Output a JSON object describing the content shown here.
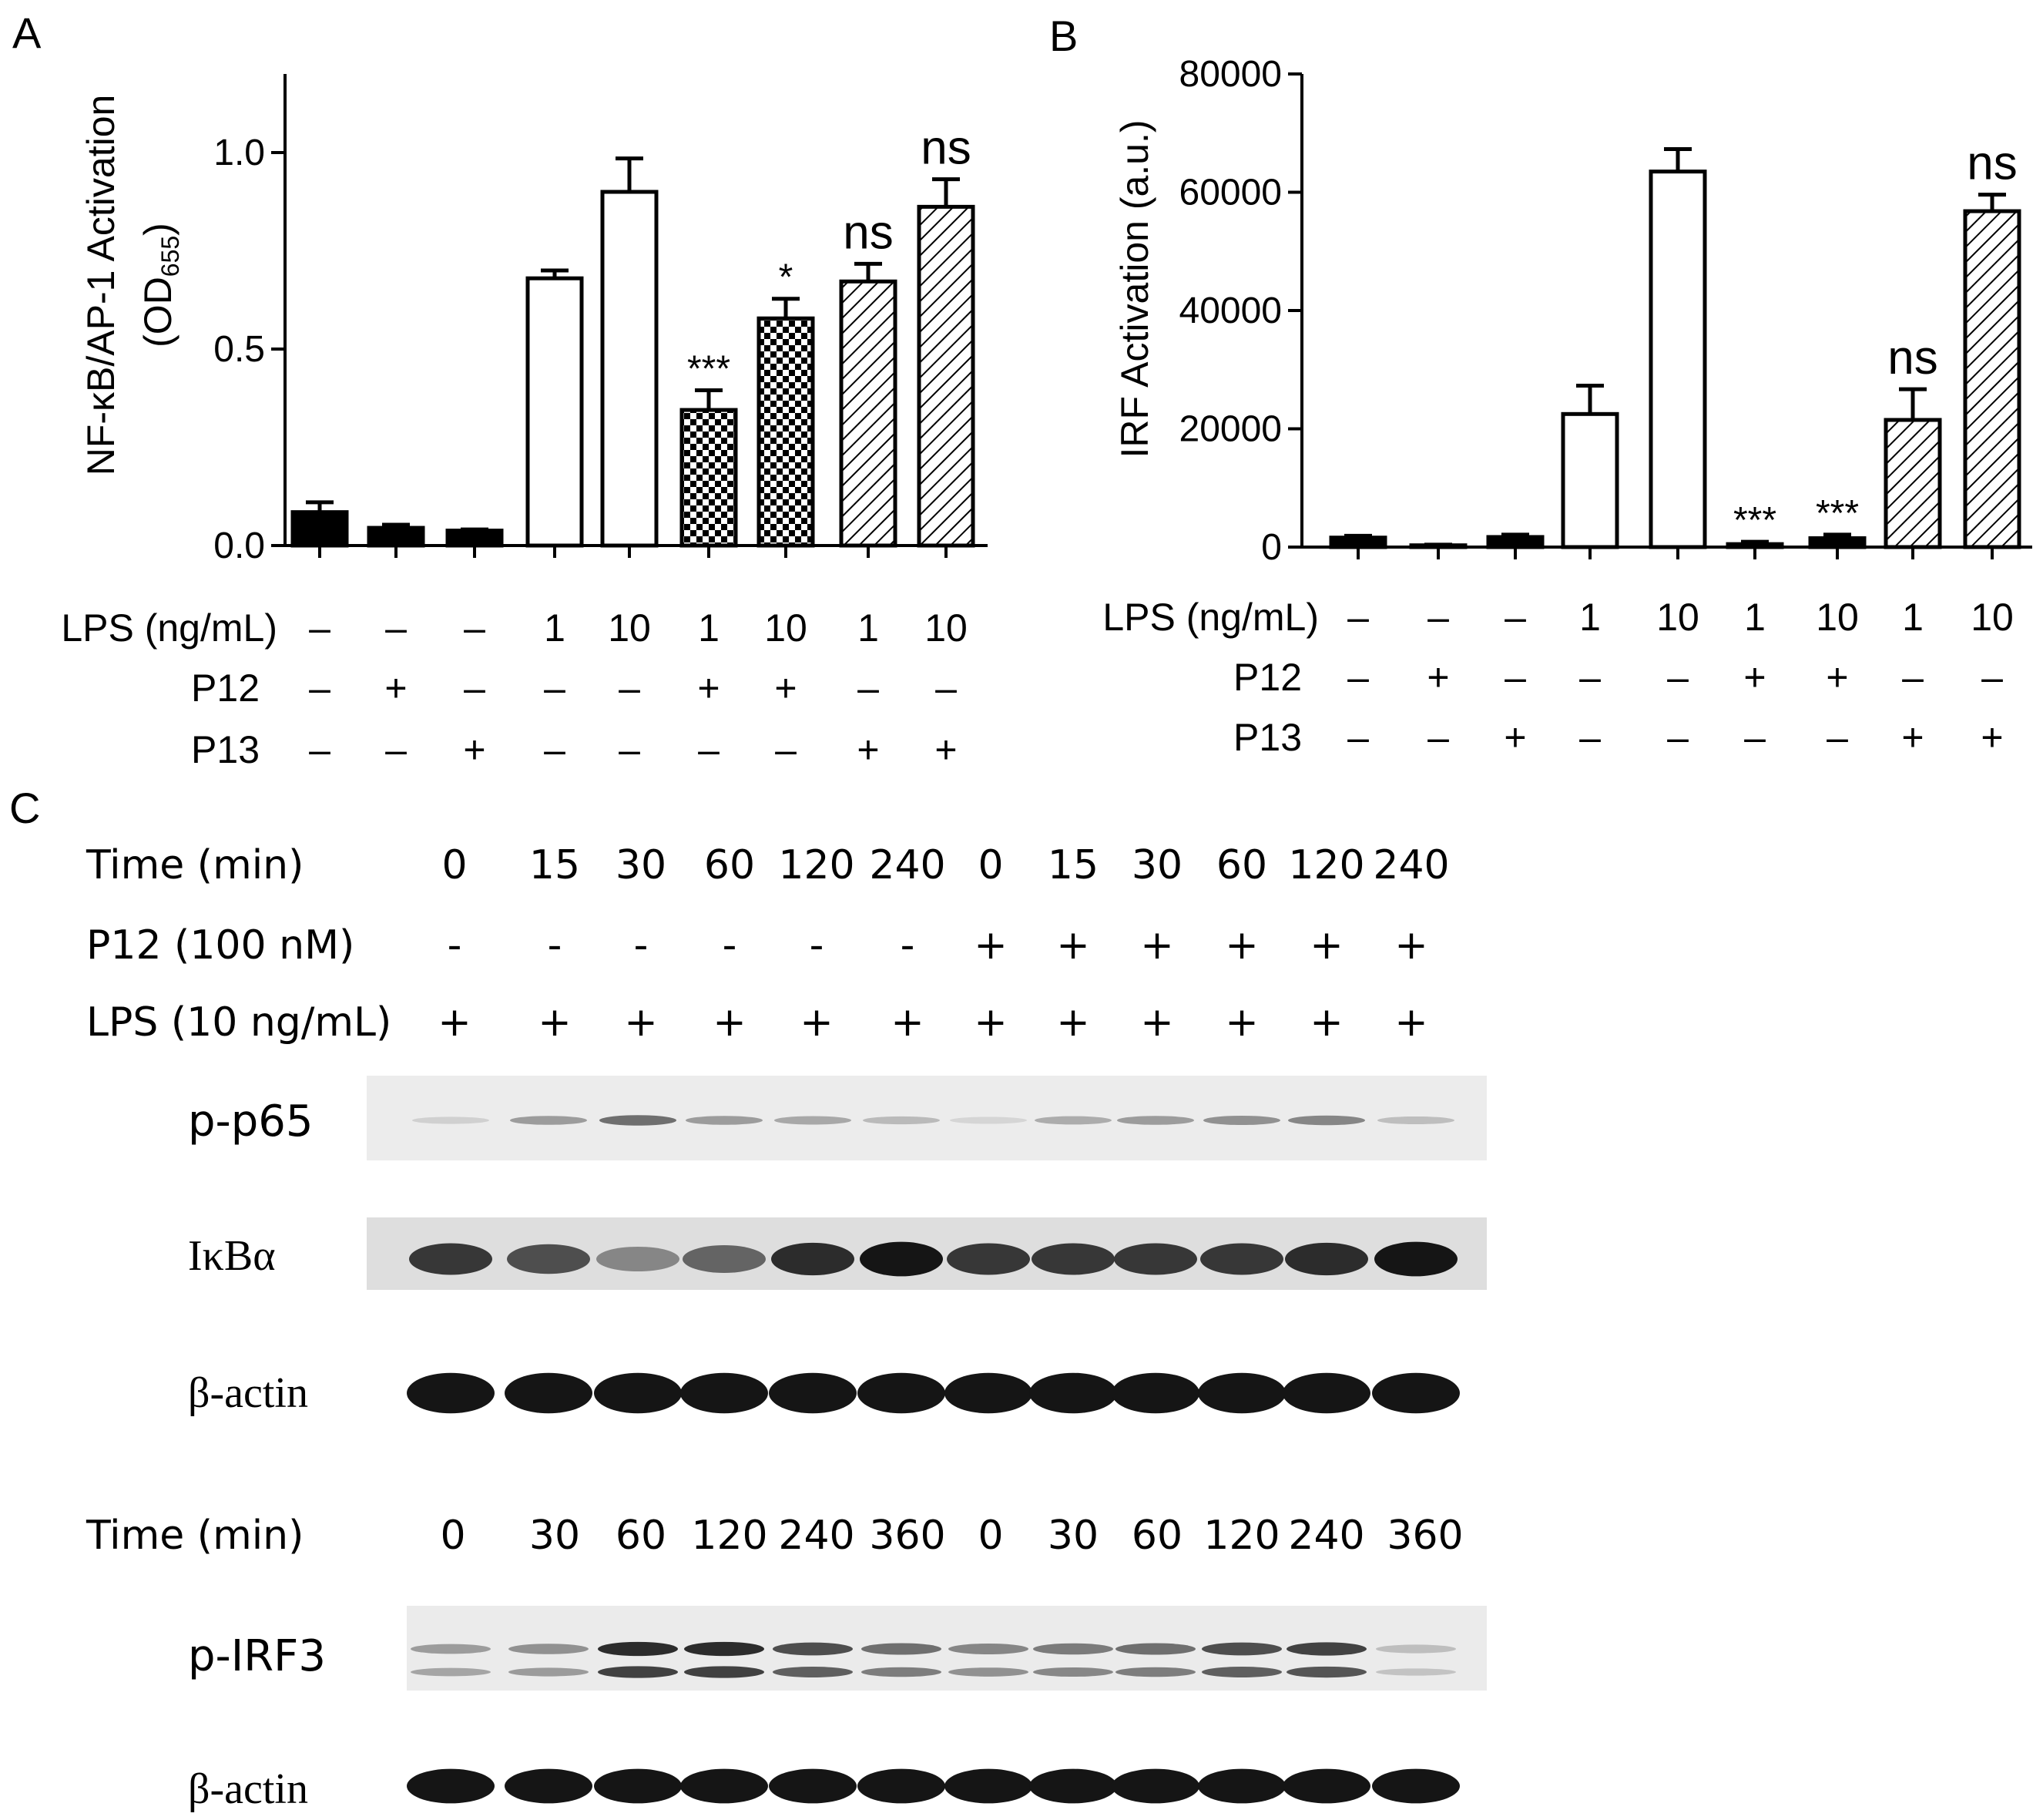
{
  "chart_data": [
    {
      "panel": "A",
      "type": "bar",
      "ylabel_line1": "NF-κB/AP-1 Activation",
      "ylabel_line2_pre": "(OD",
      "ylabel_line2_sub": "655",
      "ylabel_line2_post": ")",
      "ylim": [
        0,
        1.2
      ],
      "yticks": [
        0.0,
        0.5,
        1.0
      ],
      "ytick_labels": [
        "0.0",
        "0.5",
        "1.0"
      ],
      "values": [
        0.085,
        0.045,
        0.038,
        0.68,
        0.9,
        0.345,
        0.578,
        0.672,
        0.862
      ],
      "errors": [
        0.025,
        0.008,
        0.003,
        0.02,
        0.085,
        0.05,
        0.05,
        0.045,
        0.07
      ],
      "fills": [
        "solid",
        "solid",
        "solid",
        "open",
        "open",
        "checker",
        "checker",
        "hatch",
        "hatch"
      ],
      "annotations": [
        "",
        "",
        "",
        "",
        "",
        "***",
        "*",
        "ns",
        "ns"
      ],
      "condition_rows": [
        {
          "label": "LPS (ng/mL)",
          "values": [
            "–",
            "–",
            "–",
            "1",
            "10",
            "1",
            "10",
            "1",
            "10"
          ]
        },
        {
          "label": "P12",
          "values": [
            "–",
            "+",
            "–",
            "–",
            "–",
            "+",
            "+",
            "–",
            "–"
          ]
        },
        {
          "label": "P13",
          "values": [
            "–",
            "–",
            "+",
            "–",
            "–",
            "–",
            "–",
            "+",
            "+"
          ]
        }
      ]
    },
    {
      "panel": "B",
      "type": "bar",
      "ylabel": "IRF Activation (a.u.)",
      "ylim": [
        0,
        80000
      ],
      "yticks": [
        0,
        20000,
        40000,
        60000,
        80000
      ],
      "ytick_labels": [
        "0",
        "20000",
        "40000",
        "60000",
        "80000"
      ],
      "values": [
        1600,
        300,
        1700,
        22500,
        63500,
        500,
        1500,
        21500,
        56800
      ],
      "errors": [
        300,
        100,
        400,
        4800,
        3800,
        400,
        600,
        5200,
        2800
      ],
      "fills": [
        "solid",
        "solid",
        "solid",
        "open",
        "open",
        "solid",
        "solid",
        "hatch",
        "hatch"
      ],
      "annotations": [
        "",
        "",
        "",
        "",
        "",
        "***",
        "***",
        "ns",
        "ns"
      ],
      "condition_rows": [
        {
          "label": "LPS (ng/mL)",
          "values": [
            "–",
            "–",
            "–",
            "1",
            "10",
            "1",
            "10",
            "1",
            "10"
          ]
        },
        {
          "label": "P12",
          "values": [
            "–",
            "+",
            "–",
            "–",
            "–",
            "+",
            "+",
            "–",
            "–"
          ]
        },
        {
          "label": "P13",
          "values": [
            "–",
            "–",
            "+",
            "–",
            "–",
            "–",
            "–",
            "+",
            "+"
          ]
        }
      ]
    }
  ],
  "panel_labels": {
    "a": "A",
    "b": "B",
    "c": "C"
  },
  "blot_set1": {
    "time_label": "Time (min)",
    "times": [
      "0",
      "15",
      "30",
      "60",
      "120",
      "240",
      "0",
      "15",
      "30",
      "60",
      "120",
      "240"
    ],
    "p12_label": "P12 (100 nM)",
    "p12": [
      "-",
      "-",
      "-",
      "-",
      "-",
      "-",
      "+",
      "+",
      "+",
      "+",
      "+",
      "+"
    ],
    "lps_label": "LPS (10 ng/mL)",
    "lps": [
      "+",
      "+",
      "+",
      "+",
      "+",
      "+",
      "+",
      "+",
      "+",
      "+",
      "+",
      "+"
    ],
    "bands": [
      {
        "label": "p-p65",
        "intensity": [
          0.12,
          0.35,
          0.55,
          0.35,
          0.3,
          0.22,
          0.1,
          0.28,
          0.35,
          0.4,
          0.45,
          0.2
        ]
      },
      {
        "label": "IκBα",
        "intensity": [
          0.8,
          0.7,
          0.45,
          0.6,
          0.85,
          0.95,
          0.8,
          0.8,
          0.8,
          0.8,
          0.85,
          0.95
        ]
      },
      {
        "label": "β-actin",
        "intensity": [
          0.95,
          0.95,
          0.95,
          0.95,
          0.95,
          0.95,
          0.95,
          0.95,
          0.95,
          0.95,
          0.95,
          0.95
        ]
      }
    ]
  },
  "blot_set2": {
    "time_label": "Time (min)",
    "times": [
      "0",
      "30",
      "60",
      "120",
      "240",
      "360",
      "0",
      "30",
      "60",
      "120",
      "240",
      "360"
    ],
    "bands": [
      {
        "label": "p-IRF3",
        "intensity": [
          0.35,
          0.4,
          0.85,
          0.85,
          0.7,
          0.55,
          0.45,
          0.5,
          0.55,
          0.7,
          0.75,
          0.2
        ]
      },
      {
        "label": "β-actin",
        "intensity": [
          0.95,
          0.95,
          0.95,
          0.95,
          0.95,
          0.95,
          0.95,
          0.95,
          0.95,
          0.95,
          0.95,
          0.95
        ]
      }
    ]
  }
}
